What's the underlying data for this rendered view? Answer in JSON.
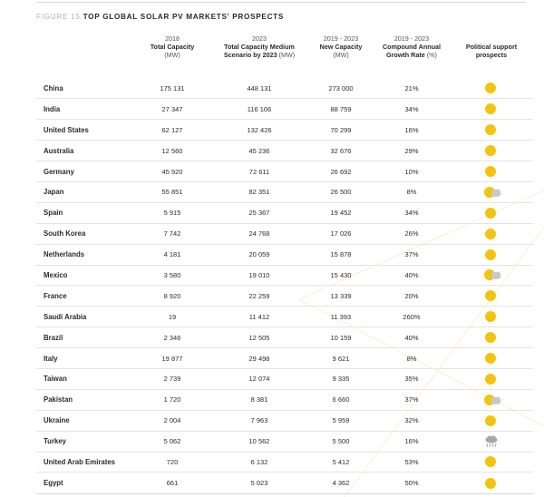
{
  "figure": {
    "number_label": "FIGURE 15",
    "title": "TOP GLOBAL SOLAR PV MARKETS' PROSPECTS"
  },
  "columns": [
    {
      "year": "",
      "title": "",
      "unit": ""
    },
    {
      "year": "2018",
      "title": "Total Capacity",
      "unit": "(MW)"
    },
    {
      "year": "2023",
      "title": "Total Capacity Medium Scenario by 2023",
      "unit": "(MW)"
    },
    {
      "year": "2019 - 2023",
      "title": "New Capacity",
      "unit": "(MW)"
    },
    {
      "year": "2019 - 2023",
      "title": "Compound Annual Growth Rate",
      "unit": "(%)"
    },
    {
      "year": "",
      "title": "Political support prospects",
      "unit": ""
    }
  ],
  "rows": [
    {
      "country": "China",
      "cap2018": "175 131",
      "cap2023": "448 131",
      "new": "273 000",
      "cagr": "21%",
      "support": "sun"
    },
    {
      "country": "India",
      "cap2018": "27 347",
      "cap2023": "116 106",
      "new": "88 759",
      "cagr": "34%",
      "support": "sun"
    },
    {
      "country": "United States",
      "cap2018": "62 127",
      "cap2023": "132 426",
      "new": "70 299",
      "cagr": "16%",
      "support": "sun"
    },
    {
      "country": "Australia",
      "cap2018": "12 560",
      "cap2023": "45 236",
      "new": "32 676",
      "cagr": "29%",
      "support": "sun"
    },
    {
      "country": "Germany",
      "cap2018": "45 920",
      "cap2023": "72 611",
      "new": "26 692",
      "cagr": "10%",
      "support": "sun"
    },
    {
      "country": "Japan",
      "cap2018": "55 851",
      "cap2023": "82 351",
      "new": "26 500",
      "cagr": "8%",
      "support": "sun-cloud"
    },
    {
      "country": "Spain",
      "cap2018": "5 915",
      "cap2023": "25 367",
      "new": "19 452",
      "cagr": "34%",
      "support": "sun"
    },
    {
      "country": "South Korea",
      "cap2018": "7 742",
      "cap2023": "24 768",
      "new": "17 026",
      "cagr": "26%",
      "support": "sun"
    },
    {
      "country": "Netherlands",
      "cap2018": "4 181",
      "cap2023": "20 059",
      "new": "15 878",
      "cagr": "37%",
      "support": "sun"
    },
    {
      "country": "Mexico",
      "cap2018": "3 580",
      "cap2023": "19 010",
      "new": "15 430",
      "cagr": "40%",
      "support": "sun-cloud"
    },
    {
      "country": "France",
      "cap2018": "8 920",
      "cap2023": "22 259",
      "new": "13 339",
      "cagr": "20%",
      "support": "sun"
    },
    {
      "country": "Saudi Arabia",
      "cap2018": "19",
      "cap2023": "11 412",
      "new": "11 393",
      "cagr": "260%",
      "support": "sun"
    },
    {
      "country": "Brazil",
      "cap2018": "2 346",
      "cap2023": "12 505",
      "new": "10 159",
      "cagr": "40%",
      "support": "sun"
    },
    {
      "country": "Italy",
      "cap2018": "19 877",
      "cap2023": "29 498",
      "new": "9 621",
      "cagr": "8%",
      "support": "sun"
    },
    {
      "country": "Taiwan",
      "cap2018": "2 739",
      "cap2023": "12 074",
      "new": "9 335",
      "cagr": "35%",
      "support": "sun"
    },
    {
      "country": "Pakistan",
      "cap2018": "1 720",
      "cap2023": "8 381",
      "new": "6 660",
      "cagr": "37%",
      "support": "sun-cloud"
    },
    {
      "country": "Ukraine",
      "cap2018": "2 004",
      "cap2023": "7 963",
      "new": "5 959",
      "cagr": "32%",
      "support": "sun"
    },
    {
      "country": "Turkey",
      "cap2018": "5 062",
      "cap2023": "10 562",
      "new": "5 500",
      "cagr": "16%",
      "support": "rain"
    },
    {
      "country": "United Arab Emirates",
      "cap2018": "720",
      "cap2023": "6 132",
      "new": "5 412",
      "cagr": "53%",
      "support": "sun"
    },
    {
      "country": "Egypt",
      "cap2018": "661",
      "cap2023": "5 023",
      "new": "4 362",
      "cagr": "50%",
      "support": "sun"
    }
  ],
  "icons": {
    "sun": "sun-icon",
    "sun-cloud": "sun-cloud-icon",
    "rain": "rain-cloud-icon"
  },
  "colors": {
    "sun": "#f2c40f",
    "cloud": "#c8c8c8",
    "rain": "#a8a8a8"
  }
}
